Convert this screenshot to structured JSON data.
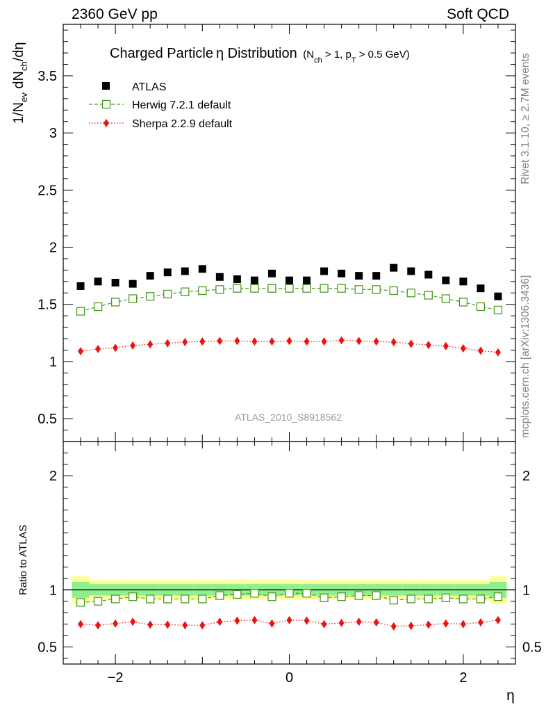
{
  "header": {
    "left": "2360 GeV pp",
    "right": "Soft QCD"
  },
  "side_labels": {
    "top": "Rivet 3.1.10, ≥ 2.7M events",
    "bottom": "mcplots.cern.ch [arXiv:1306.3436]"
  },
  "watermark": "ATLAS_2010_S8918562",
  "colors": {
    "atlas": "#000000",
    "herwig": "#4a9a1e",
    "sherpa": "#ee1111",
    "band_inner": "#8fef8f",
    "band_outer": "#ffff99"
  },
  "chart_data": [
    {
      "type": "scatter",
      "panel": "main",
      "title": {
        "main": "Charged Particle",
        "symbol": "η",
        "tail": " Distribution",
        "cut_open": "(N",
        "cut_sub1": "ch",
        "cut_mid": " > 1, p",
        "cut_sub2": "T",
        "cut_close": " > 0.5 GeV)"
      },
      "ylabel": {
        "p1": "1/N",
        "s1": "ev",
        "p2": " dN",
        "s2": "ch",
        "p3": "/dη"
      },
      "xlim": [
        -2.6,
        2.6
      ],
      "ylim": [
        0.3,
        3.95
      ],
      "yticks": [
        0.5,
        1,
        1.5,
        2,
        2.5,
        3,
        3.5
      ],
      "ytick_labels": [
        "0.5",
        "1",
        "1.5",
        "2",
        "2.5",
        "3",
        "3.5"
      ],
      "x": [
        -2.4,
        -2.2,
        -2.0,
        -1.8,
        -1.6,
        -1.4,
        -1.2,
        -1.0,
        -0.8,
        -0.6,
        -0.4,
        -0.2,
        0.0,
        0.2,
        0.4,
        0.6,
        0.8,
        1.0,
        1.2,
        1.4,
        1.6,
        1.8,
        2.0,
        2.2,
        2.4
      ],
      "legend": {
        "position": "top-left"
      },
      "series": [
        {
          "name": "ATLAS",
          "style": "data",
          "values": [
            1.66,
            1.7,
            1.69,
            1.68,
            1.75,
            1.78,
            1.79,
            1.81,
            1.74,
            1.72,
            1.71,
            1.77,
            1.71,
            1.71,
            1.79,
            1.77,
            1.75,
            1.75,
            1.82,
            1.79,
            1.76,
            1.71,
            1.7,
            1.64,
            1.57
          ]
        },
        {
          "name": "Herwig 7.2.1 default",
          "style": "herwig",
          "values": [
            1.44,
            1.48,
            1.52,
            1.55,
            1.57,
            1.59,
            1.61,
            1.62,
            1.63,
            1.64,
            1.64,
            1.64,
            1.64,
            1.64,
            1.64,
            1.64,
            1.63,
            1.63,
            1.62,
            1.6,
            1.58,
            1.55,
            1.52,
            1.48,
            1.45
          ]
        },
        {
          "name": "Sherpa 2.2.9 default",
          "style": "sherpa",
          "values": [
            1.09,
            1.11,
            1.12,
            1.14,
            1.15,
            1.16,
            1.17,
            1.175,
            1.18,
            1.18,
            1.175,
            1.175,
            1.18,
            1.175,
            1.175,
            1.185,
            1.18,
            1.175,
            1.17,
            1.155,
            1.145,
            1.135,
            1.115,
            1.095,
            1.08
          ]
        }
      ]
    },
    {
      "type": "scatter",
      "panel": "ratio",
      "ylabel": "Ratio to ATLAS",
      "xlabel": "η",
      "xlim": [
        -2.6,
        2.6
      ],
      "ylim": [
        0.35,
        2.3
      ],
      "yticks": [
        0.5,
        1,
        2
      ],
      "ytick_labels": [
        "0.5",
        "1",
        "2"
      ],
      "xticks": [
        -2,
        0,
        2
      ],
      "xtick_labels": [
        "−2",
        "0",
        "2"
      ],
      "reference_line": 1,
      "band": {
        "inner_half_width": [
          0.07,
          0.05,
          0.05,
          0.05,
          0.05,
          0.05,
          0.05,
          0.05,
          0.05,
          0.05,
          0.05,
          0.05,
          0.05,
          0.05,
          0.05,
          0.05,
          0.05,
          0.05,
          0.05,
          0.05,
          0.05,
          0.05,
          0.05,
          0.05,
          0.07
        ],
        "outer_half_width": [
          0.12,
          0.085,
          0.085,
          0.085,
          0.085,
          0.085,
          0.085,
          0.085,
          0.085,
          0.085,
          0.085,
          0.085,
          0.085,
          0.085,
          0.085,
          0.085,
          0.085,
          0.085,
          0.085,
          0.085,
          0.085,
          0.085,
          0.085,
          0.085,
          0.12
        ]
      },
      "series": [
        {
          "name": "Herwig 7.2.1 default",
          "style": "herwig",
          "values": [
            0.89,
            0.9,
            0.92,
            0.94,
            0.92,
            0.92,
            0.92,
            0.92,
            0.95,
            0.96,
            0.97,
            0.94,
            0.97,
            0.97,
            0.93,
            0.94,
            0.95,
            0.95,
            0.91,
            0.92,
            0.92,
            0.93,
            0.92,
            0.92,
            0.94
          ]
        },
        {
          "name": "Sherpa 2.2.9 default",
          "style": "sherpa",
          "values": [
            0.7,
            0.69,
            0.705,
            0.72,
            0.695,
            0.695,
            0.69,
            0.69,
            0.72,
            0.73,
            0.735,
            0.705,
            0.735,
            0.73,
            0.7,
            0.71,
            0.72,
            0.715,
            0.68,
            0.685,
            0.695,
            0.705,
            0.7,
            0.715,
            0.735
          ]
        }
      ]
    }
  ]
}
